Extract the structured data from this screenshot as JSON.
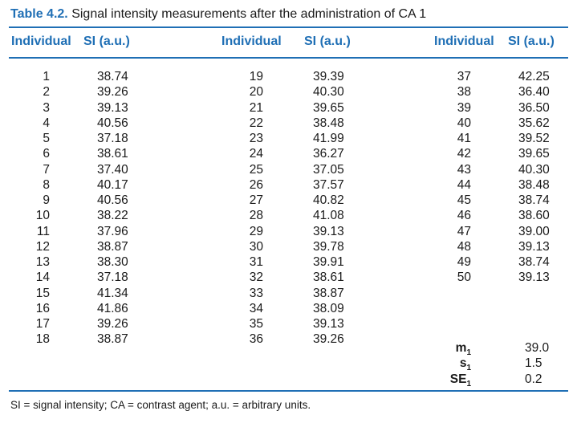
{
  "caption": {
    "number": "Table 4.2.",
    "title": "Signal intensity measurements after the administration of CA 1"
  },
  "headers": {
    "individual": "Individual",
    "si": "SI (a.u.)"
  },
  "groups": [
    {
      "ids": [
        "1",
        "2",
        "3",
        "4",
        "5",
        "6",
        "7",
        "8",
        "9",
        "10",
        "11",
        "12",
        "13",
        "14",
        "15",
        "16",
        "17",
        "18"
      ],
      "values": [
        "38.74",
        "39.26",
        "39.13",
        "40.56",
        "37.18",
        "38.61",
        "37.40",
        "40.17",
        "40.56",
        "38.22",
        "37.96",
        "38.87",
        "38.30",
        "37.18",
        "41.34",
        "41.86",
        "39.26",
        "38.87"
      ]
    },
    {
      "ids": [
        "19",
        "20",
        "21",
        "22",
        "23",
        "24",
        "25",
        "26",
        "27",
        "28",
        "29",
        "30",
        "31",
        "32",
        "33",
        "34",
        "35",
        "36"
      ],
      "values": [
        "39.39",
        "40.30",
        "39.65",
        "38.48",
        "41.99",
        "36.27",
        "37.05",
        "37.57",
        "40.82",
        "41.08",
        "39.13",
        "39.78",
        "39.91",
        "38.61",
        "38.87",
        "38.09",
        "39.13",
        "39.26"
      ]
    },
    {
      "ids": [
        "37",
        "38",
        "39",
        "40",
        "41",
        "42",
        "43",
        "44",
        "45",
        "46",
        "47",
        "48",
        "49",
        "50"
      ],
      "values": [
        "42.25",
        "36.40",
        "36.50",
        "35.62",
        "39.52",
        "39.65",
        "40.30",
        "38.48",
        "38.74",
        "38.60",
        "39.00",
        "39.13",
        "38.74",
        "39.13"
      ]
    }
  ],
  "stats": [
    {
      "symbol": "m",
      "sub": "1",
      "value": "39.0"
    },
    {
      "symbol": "s",
      "sub": "1",
      "value": "1.5"
    },
    {
      "symbol": "SE",
      "sub": "1",
      "value": "0.2"
    }
  ],
  "footnote": "SI = signal intensity; CA = contrast agent; a.u. = arbitrary units."
}
